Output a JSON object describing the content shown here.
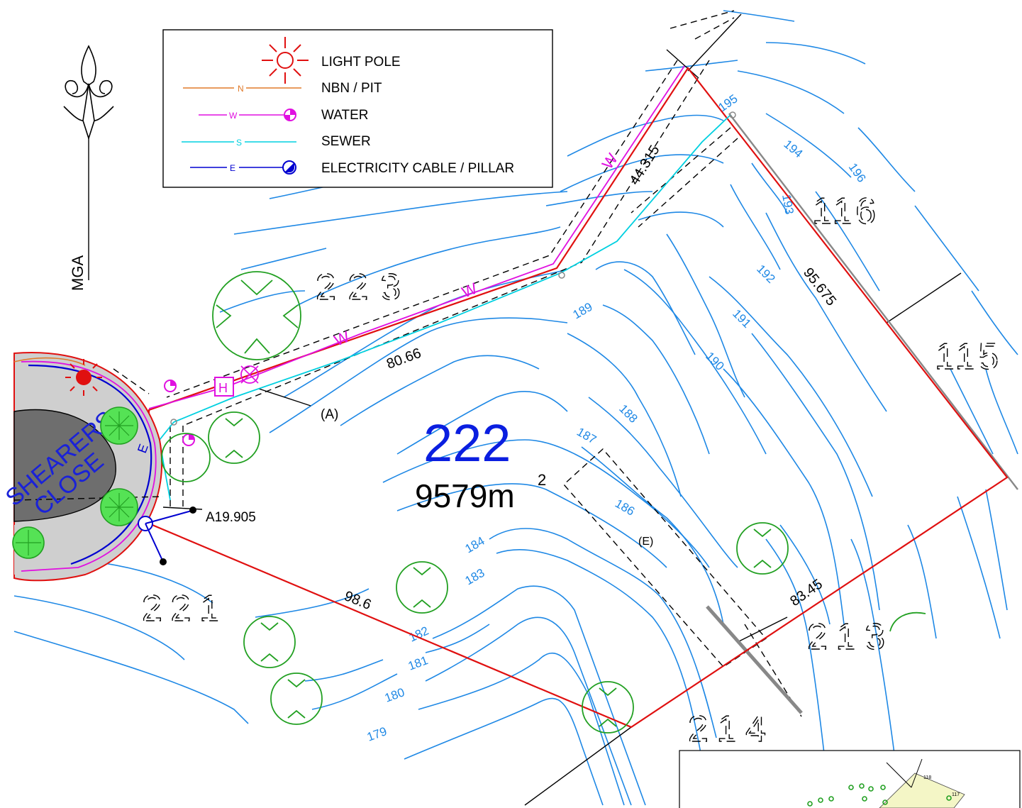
{
  "north_arrow": {
    "label": "MGA"
  },
  "legend": {
    "items": [
      {
        "symbol": "light-pole",
        "tag": "",
        "label": "LIGHT POLE",
        "color": "#e01010"
      },
      {
        "symbol": "nbn-line",
        "tag": "N",
        "label": "NBN / PIT",
        "color": "#e07a2a"
      },
      {
        "symbol": "water-line",
        "tag": "W",
        "label": "WATER",
        "color": "#e010e0"
      },
      {
        "symbol": "sewer-line",
        "tag": "S",
        "label": "SEWER",
        "color": "#00d0e0"
      },
      {
        "symbol": "electricity-line",
        "tag": "E",
        "label": "ELECTRICITY CABLE / PILLAR",
        "color": "#0000d0"
      }
    ]
  },
  "lot": {
    "number": "222",
    "area": "9579m",
    "area_unit_exp": "2",
    "color": "#0a1ee0"
  },
  "street": {
    "line1": "SHEARERS",
    "line2": "CLOSE",
    "color": "#1a22d8"
  },
  "dimensions": {
    "north_side": "80.66",
    "north_short": "44.315",
    "east_side": "95.675",
    "south_east": "83.45",
    "south_west": "98.6",
    "frontage": "A19.905"
  },
  "easements": {
    "a": "(A)",
    "e": "(E)"
  },
  "hydrant": "H",
  "service_tags": {
    "water": "W",
    "sewer": "S",
    "electric": "E",
    "nbn": "N"
  },
  "neighbour_lots": [
    "223",
    "221",
    "116",
    "115",
    "213",
    "214"
  ],
  "contours": [
    "179",
    "180",
    "181",
    "182",
    "183",
    "184",
    "186",
    "187",
    "188",
    "189",
    "190",
    "191",
    "192",
    "193",
    "194",
    "195",
    "196"
  ],
  "inset": {
    "lots": [
      "118",
      "117"
    ]
  }
}
